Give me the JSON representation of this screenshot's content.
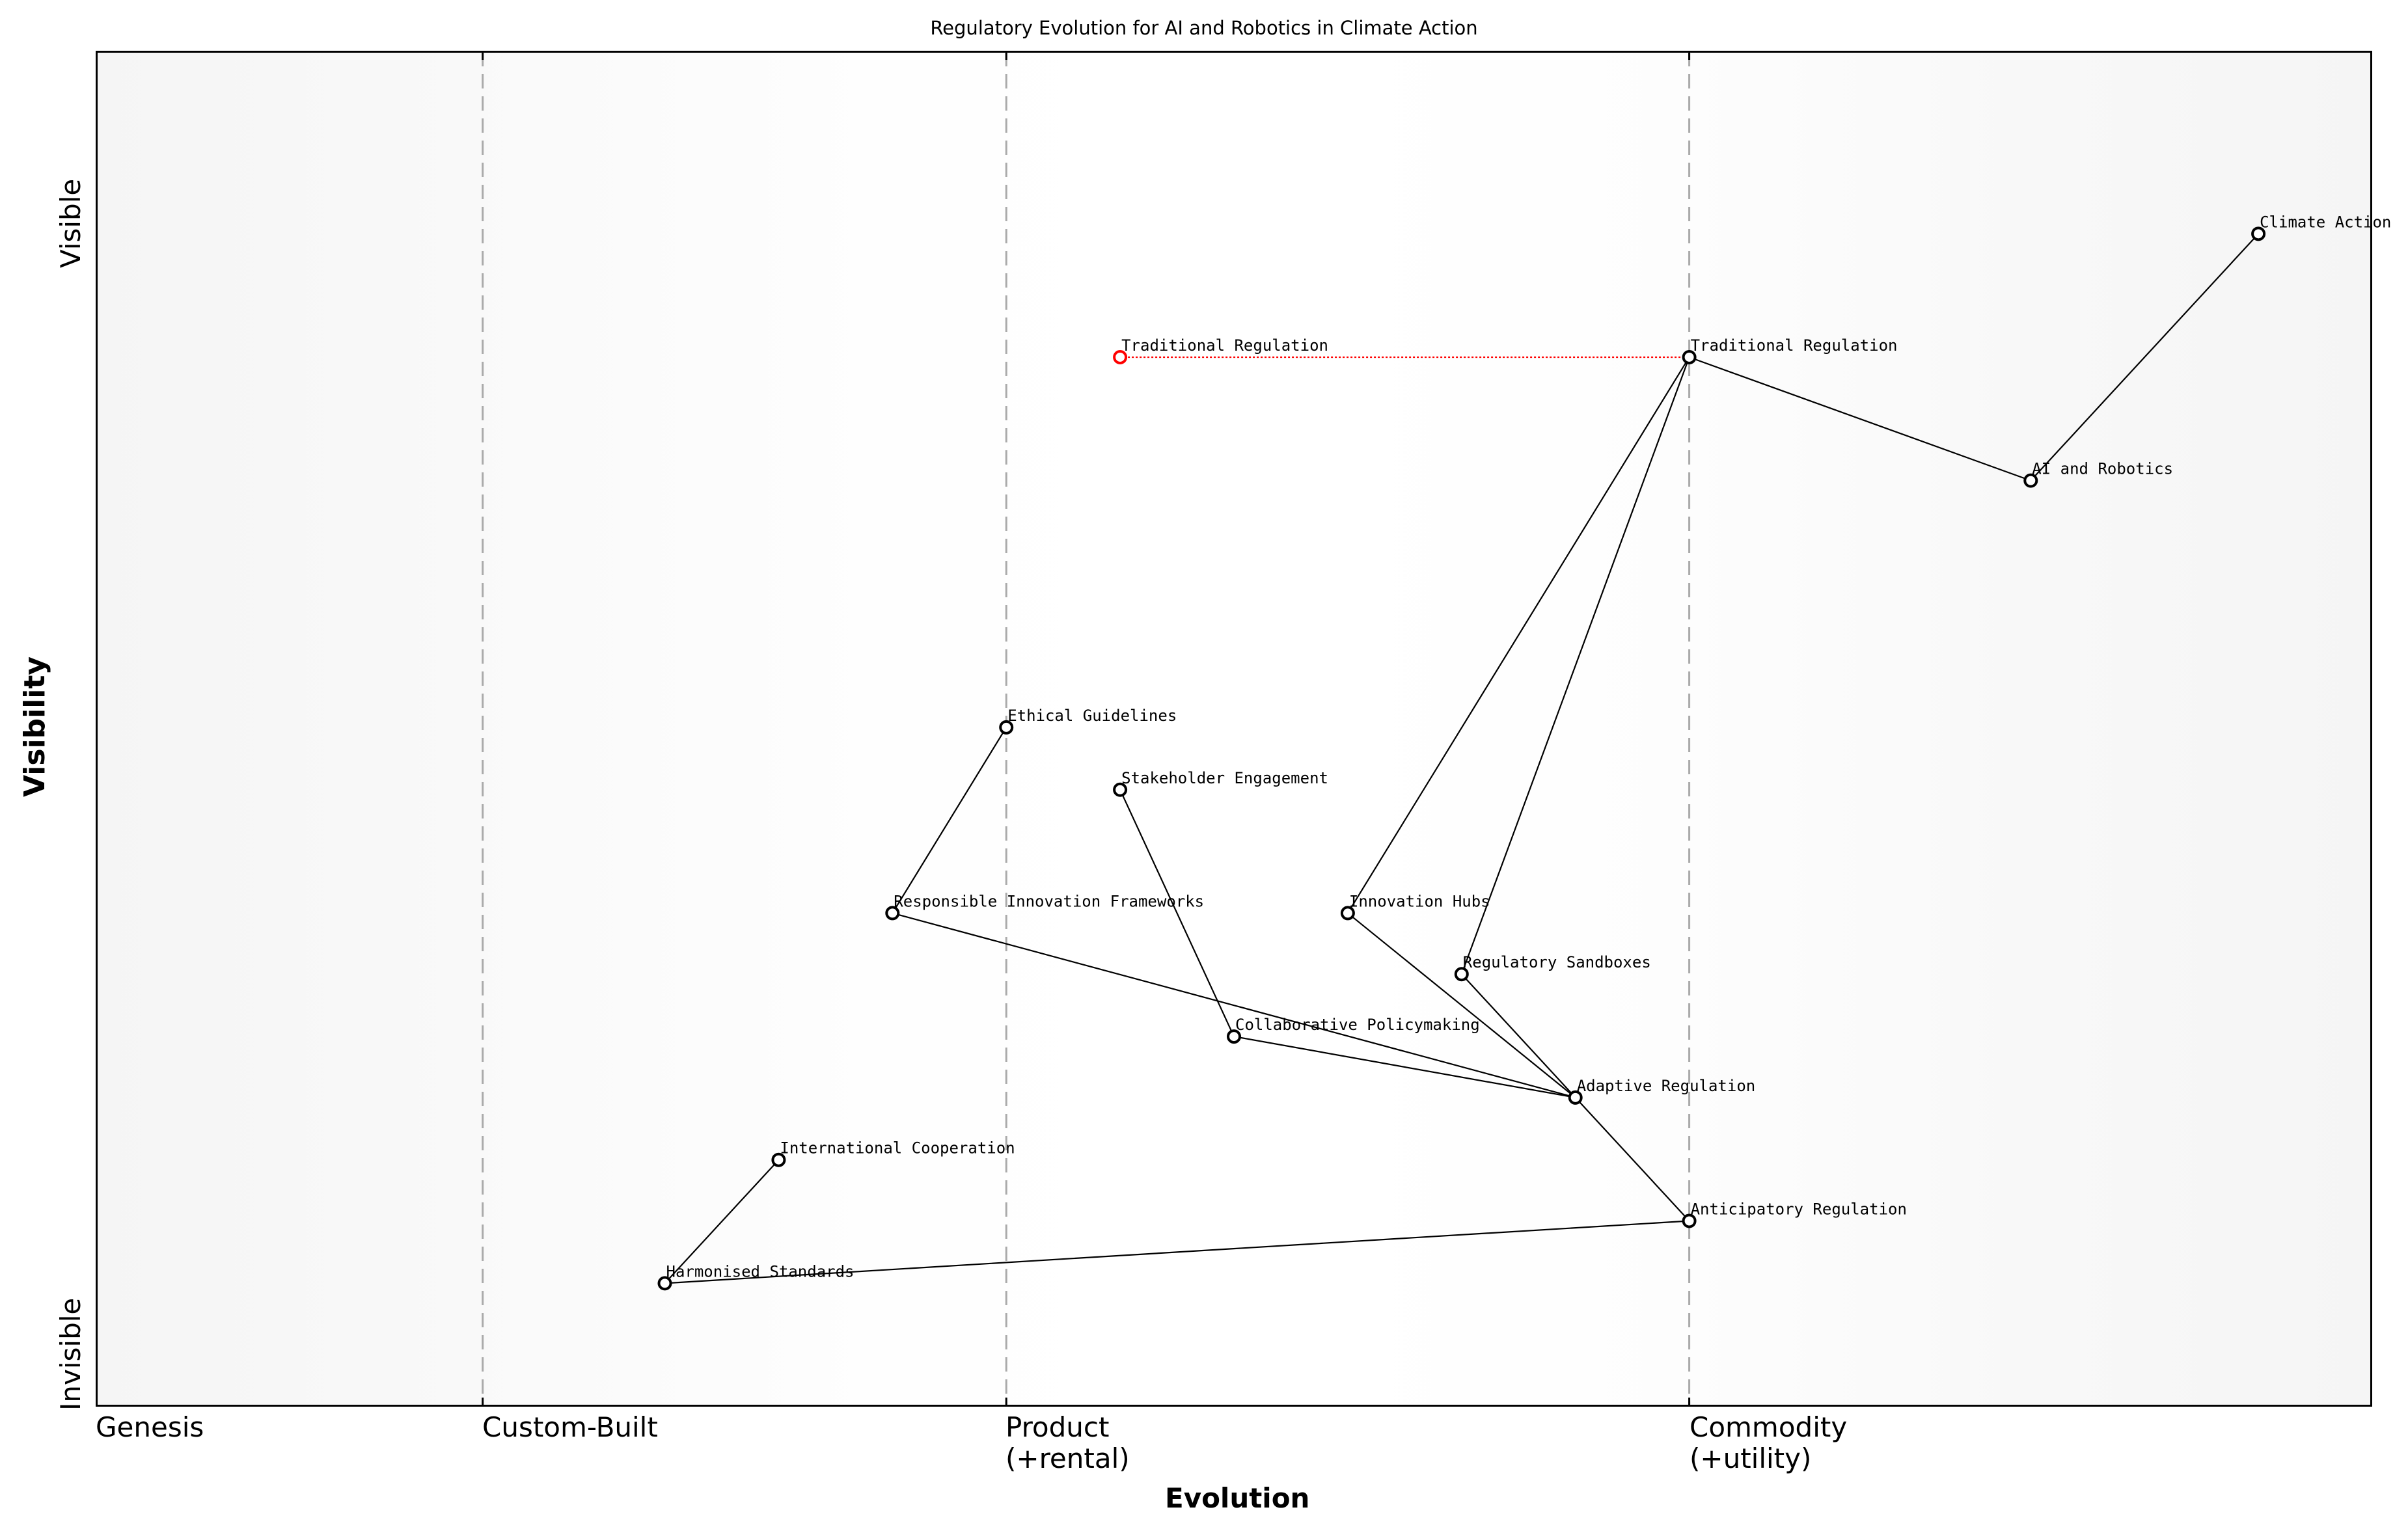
{
  "chart_data": {
    "type": "wardley-map",
    "title": "Regulatory Evolution for AI and Robotics in Climate Action",
    "xlabel": "Evolution",
    "ylabel": "Visibility",
    "x_ticks": [
      {
        "label": "Genesis",
        "x": 0.0
      },
      {
        "label": "Custom-Built",
        "x": 0.17
      },
      {
        "label": "Product\n(+rental)",
        "x": 0.4
      },
      {
        "label": "Commodity\n(+utility)",
        "x": 0.7
      }
    ],
    "y_ticks": [
      {
        "label": "Visible",
        "y": 0.9
      },
      {
        "label": "Invisible",
        "y": 0.0
      }
    ],
    "stage_lines": [
      0.17,
      0.4,
      0.7
    ],
    "components": [
      {
        "name": "Climate Action",
        "x": 0.95,
        "y": 0.865
      },
      {
        "name": "AI and Robotics",
        "x": 0.85,
        "y": 0.683
      },
      {
        "name": "Traditional Regulation",
        "x": 0.7,
        "y": 0.774
      },
      {
        "name": "Ethical Guidelines",
        "x": 0.4,
        "y": 0.501
      },
      {
        "name": "Stakeholder Engagement",
        "x": 0.45,
        "y": 0.455
      },
      {
        "name": "Responsible Innovation Frameworks",
        "x": 0.35,
        "y": 0.364
      },
      {
        "name": "Innovation Hubs",
        "x": 0.55,
        "y": 0.364
      },
      {
        "name": "Regulatory Sandboxes",
        "x": 0.6,
        "y": 0.319
      },
      {
        "name": "Collaborative Policymaking",
        "x": 0.5,
        "y": 0.273
      },
      {
        "name": "Adaptive Regulation",
        "x": 0.65,
        "y": 0.228
      },
      {
        "name": "International Cooperation",
        "x": 0.3,
        "y": 0.182
      },
      {
        "name": "Anticipatory Regulation",
        "x": 0.7,
        "y": 0.137
      },
      {
        "name": "Harmonised Standards",
        "x": 0.25,
        "y": 0.091
      }
    ],
    "links": [
      [
        "Climate Action",
        "AI and Robotics"
      ],
      [
        "AI and Robotics",
        "Traditional Regulation"
      ],
      [
        "Traditional Regulation",
        "Innovation Hubs"
      ],
      [
        "Traditional Regulation",
        "Regulatory Sandboxes"
      ],
      [
        "Ethical Guidelines",
        "Responsible Innovation Frameworks"
      ],
      [
        "Responsible Innovation Frameworks",
        "Adaptive Regulation"
      ],
      [
        "Stakeholder Engagement",
        "Collaborative Policymaking"
      ],
      [
        "Collaborative Policymaking",
        "Adaptive Regulation"
      ],
      [
        "Innovation Hubs",
        "Adaptive Regulation"
      ],
      [
        "Regulatory Sandboxes",
        "Adaptive Regulation"
      ],
      [
        "Adaptive Regulation",
        "Anticipatory Regulation"
      ],
      [
        "Anticipatory Regulation",
        "Harmonised Standards"
      ],
      [
        "Harmonised Standards",
        "International Cooperation"
      ]
    ],
    "evolution": [
      {
        "name": "Traditional Regulation",
        "from_x": 0.7,
        "to_x": 0.45,
        "y": 0.774,
        "color": "#ff0000",
        "style": "dotted"
      }
    ],
    "colors": {
      "node_stroke": "#000000",
      "node_fill": "#ffffff",
      "evolved_node": "#ff0000",
      "stage_line": "#aaaaaa"
    }
  },
  "title": "Regulatory Evolution for AI and Robotics in Climate Action",
  "axes": {
    "x_label": "Evolution",
    "y_label": "Visibility",
    "x_ticks": [
      "Genesis",
      "Custom-Built",
      "Product\n(+rental)",
      "Commodity\n(+utility)"
    ],
    "y_ticks": [
      "Visible",
      "Invisible"
    ]
  }
}
